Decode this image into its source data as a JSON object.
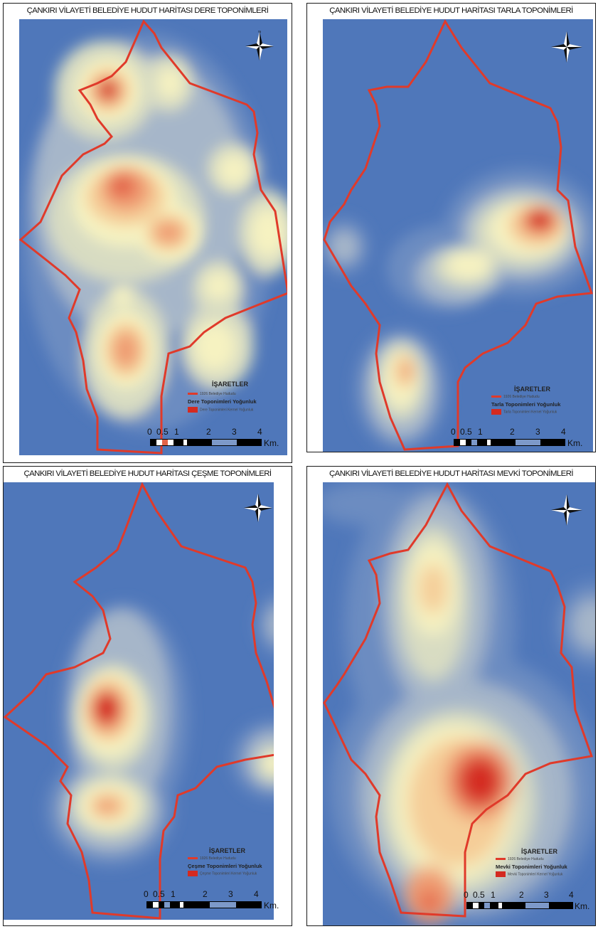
{
  "panels": [
    {
      "title": "ÇANKIRI VİLAYETİ BELEDİYE HUDUT HARİTASI DERE TOPONİMLERİ",
      "legend_title": "İŞARETLER",
      "boundary_label": "1926 Belediye Hududu",
      "density_title": "Dere Toponimleri Yoğunluk",
      "kernel_label": "Dere Toponimleri Kernel Yoğunluk"
    },
    {
      "title": "ÇANKIRI VİLAYETİ BELEDİYE HUDUT HARİTASI TARLA TOPONİMLERİ",
      "legend_title": "İŞARETLER",
      "boundary_label": "1926 Belediye Hududu",
      "density_title": "Tarla Toponimleri Yoğunluk",
      "kernel_label": "Tarla Toponimleri Kernel Yoğunluk"
    },
    {
      "title": "ÇANKIRI VİLAYETİ BELEDİYE HUDUT HARİTASI ÇEŞME TOPONİMLERİ",
      "legend_title": "İŞARETLER",
      "boundary_label": "1926 Belediye Hududu",
      "density_title": "Çeşme Toponimleri Yoğunluk",
      "kernel_label": "Çeşme Toponimleri Kernel Yoğunluk"
    },
    {
      "title": "ÇANKIRI VİLAYETİ BELEDİYE HUDUT HARİTASI MEVKİ TOPONİMLERİ",
      "legend_title": "İŞARETLER",
      "boundary_label": "1926 Belediye Hududu",
      "density_title": "Mevki Toponimleri Yoğunluk",
      "kernel_label": "Mevki Toponimleri Kernel Yoğunluk"
    }
  ],
  "scale_ticks": [
    "0",
    "0.5",
    "1",
    "2",
    "3",
    "4"
  ],
  "scale_unit": "Km.",
  "colors": {
    "background": "#4f77ba",
    "density_ramp": [
      "#6c8cc1",
      "#a6b6c9",
      "#d8dcc2",
      "#f6f2c1",
      "#f5cd98",
      "#ef9c72",
      "#e36449",
      "#d42a20"
    ],
    "boundary": "#e03a2a"
  }
}
